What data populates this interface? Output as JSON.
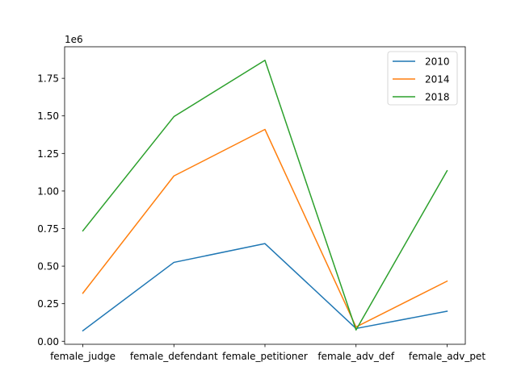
{
  "chart_data": {
    "type": "line",
    "title": "",
    "xlabel": "",
    "ylabel": "",
    "categories": [
      "female_judge",
      "female_defendant",
      "female_petitioner",
      "female_adv_def",
      "female_adv_pet"
    ],
    "y_offset_label": "1e6",
    "ylim": [
      -20000,
      1960000
    ],
    "yticks": [
      0.0,
      250000,
      500000,
      750000,
      1000000,
      1250000,
      1500000,
      1750000
    ],
    "ytick_labels": [
      "0.00",
      "0.25",
      "0.50",
      "0.75",
      "1.00",
      "1.25",
      "1.50",
      "1.75"
    ],
    "grid": false,
    "legend_position": "top-right",
    "series": [
      {
        "name": "2010",
        "color": "#1f77b4",
        "values": [
          70000,
          525000,
          650000,
          85000,
          200000
        ]
      },
      {
        "name": "2014",
        "color": "#ff7f0e",
        "values": [
          320000,
          1100000,
          1410000,
          95000,
          400000
        ]
      },
      {
        "name": "2018",
        "color": "#2ca02c",
        "values": [
          735000,
          1495000,
          1870000,
          75000,
          1135000
        ]
      }
    ]
  }
}
